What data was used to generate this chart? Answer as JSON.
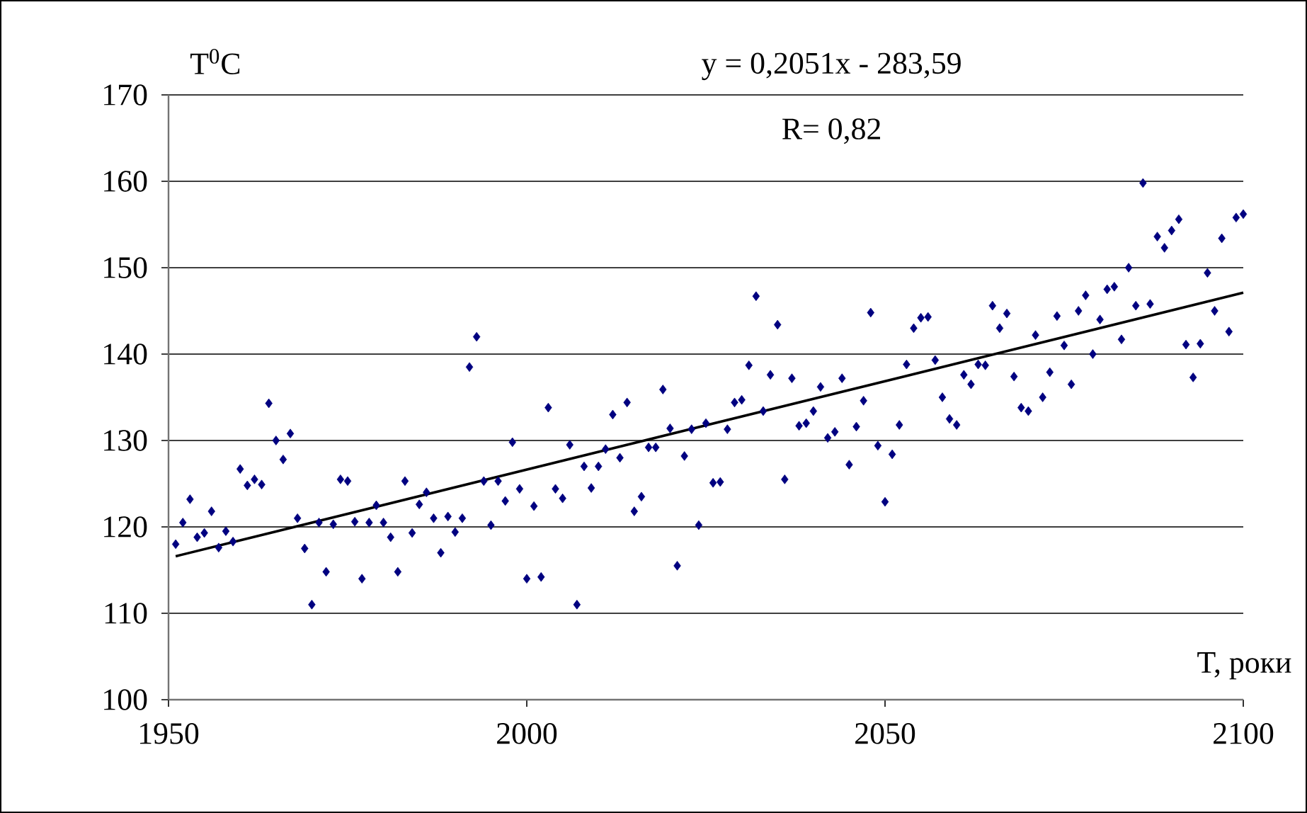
{
  "chart_data": {
    "type": "scatter",
    "xlabel": "T, роки",
    "ylabel": "T$^{0}$C",
    "annotations": [
      "y = 0,2051x - 283,59",
      "R= 0,82"
    ],
    "xlim": [
      1950,
      2100
    ],
    "xticks": [
      1950,
      2000,
      2050,
      2100
    ],
    "ylim": [
      100,
      170
    ],
    "yticks": [
      100,
      110,
      120,
      130,
      140,
      150,
      160,
      170
    ],
    "grid": "y",
    "series": [
      {
        "marker": "diamond",
        "color": "#000080",
        "x": [
          1951,
          1952,
          1953,
          1954,
          1955,
          1956,
          1957,
          1958,
          1959,
          1960,
          1961,
          1962,
          1963,
          1964,
          1965,
          1966,
          1967,
          1968,
          1969,
          1970,
          1971,
          1972,
          1973,
          1974,
          1975,
          1976,
          1977,
          1978,
          1979,
          1980,
          1981,
          1982,
          1983,
          1984,
          1985,
          1986,
          1987,
          1988,
          1989,
          1990,
          1991,
          1992,
          1993,
          1994,
          1995,
          1996,
          1997,
          1998,
          1999,
          2000,
          2001,
          2002,
          2003,
          2004,
          2005,
          2006,
          2007,
          2008,
          2009,
          2010,
          2011,
          2012,
          2013,
          2014,
          2015,
          2016,
          2017,
          2018,
          2019,
          2020,
          2021,
          2022,
          2023,
          2024,
          2025,
          2026,
          2027,
          2028,
          2029,
          2030,
          2031,
          2032,
          2033,
          2034,
          2035,
          2036,
          2037,
          2038,
          2039,
          2040,
          2041,
          2042,
          2043,
          2044,
          2045,
          2046,
          2047,
          2048,
          2049,
          2050,
          2051,
          2052,
          2053,
          2054,
          2055,
          2056,
          2057,
          2058,
          2059,
          2060,
          2061,
          2062,
          2063,
          2064,
          2065,
          2066,
          2067,
          2068,
          2069,
          2070,
          2071,
          2072,
          2073,
          2074,
          2075,
          2076,
          2077,
          2078,
          2079,
          2080,
          2081,
          2082,
          2083,
          2084,
          2085,
          2086,
          2087,
          2088,
          2089,
          2090,
          2091,
          2092,
          2093,
          2094,
          2095,
          2096,
          2097,
          2098,
          2099,
          2100
        ],
        "values": [
          118,
          120.5,
          123.2,
          118.8,
          119.3,
          121.8,
          117.6,
          119.5,
          118.3,
          126.7,
          124.8,
          125.5,
          124.9,
          134.3,
          130,
          127.8,
          130.8,
          121,
          117.5,
          111,
          120.5,
          114.8,
          120.3,
          125.5,
          125.3,
          120.6,
          114,
          120.5,
          122.5,
          120.5,
          118.8,
          114.8,
          125.3,
          119.3,
          122.6,
          124,
          121,
          117,
          121.2,
          119.4,
          121,
          138.5,
          142,
          125.3,
          120.2,
          125.3,
          123,
          129.8,
          124.4,
          114,
          122.4,
          114.2,
          133.8,
          124.4,
          123.3,
          129.5,
          111,
          127,
          124.5,
          127,
          129,
          133,
          128,
          134.4,
          121.8,
          123.5,
          129.2,
          129.2,
          135.9,
          131.4,
          115.5,
          128.2,
          131.3,
          120.2,
          132,
          125.1,
          125.2,
          131.3,
          134.4,
          134.7,
          138.7,
          146.7,
          133.4,
          137.6,
          143.4,
          125.5,
          137.2,
          131.7,
          132,
          133.4,
          136.2,
          130.3,
          131,
          137.2,
          127.2,
          131.6,
          134.6,
          144.8,
          129.4,
          122.9,
          128.4,
          131.8,
          138.8,
          143,
          144.2,
          144.3,
          139.3,
          135,
          132.5,
          131.8,
          137.6,
          136.5,
          138.8,
          138.7,
          145.6,
          143,
          144.7,
          137.4,
          133.8,
          133.4,
          142.2,
          135,
          137.9,
          144.4,
          141,
          136.5,
          145,
          146.8,
          140,
          144,
          147.5,
          147.8,
          141.7,
          150,
          145.6,
          159.8,
          145.8,
          153.6,
          152.3,
          154.3,
          155.6,
          141.1,
          137.3,
          141.2,
          149.4,
          145,
          153.4,
          142.6,
          155.8,
          156.2
        ]
      },
      {
        "type": "line",
        "marker": "none",
        "color": "#000000",
        "x": [
          1951,
          2100
        ],
        "values": [
          116.6,
          147.1
        ]
      }
    ]
  }
}
